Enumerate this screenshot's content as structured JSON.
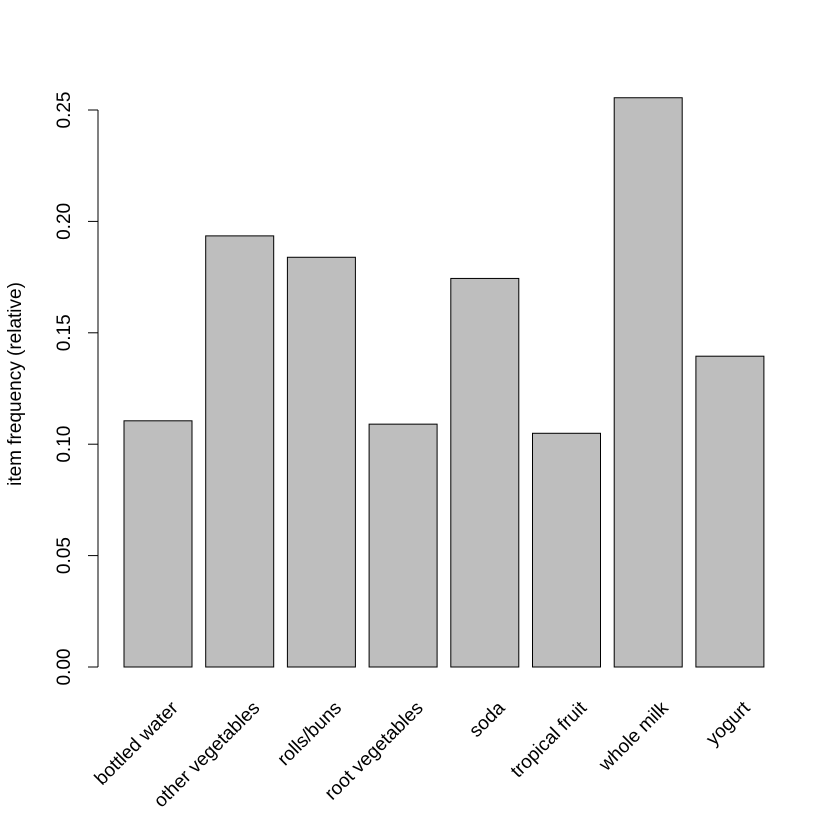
{
  "chart_data": {
    "type": "bar",
    "title": "",
    "xlabel": "",
    "ylabel": "item frequency (relative)",
    "categories": [
      "bottled water",
      "other vegetables",
      "rolls/buns",
      "root vegetables",
      "soda",
      "tropical fruit",
      "whole milk",
      "yogurt"
    ],
    "values": [
      0.1105,
      0.1935,
      0.1839,
      0.109,
      0.1744,
      0.1049,
      0.2555,
      0.1395
    ],
    "yticks": [
      "0.00",
      "0.05",
      "0.10",
      "0.15",
      "0.20",
      "0.25"
    ],
    "ylim": [
      0,
      0.25
    ],
    "grid": false,
    "legend": "none",
    "bar_color": "#bebebe",
    "bar_border_color": "#000000"
  }
}
